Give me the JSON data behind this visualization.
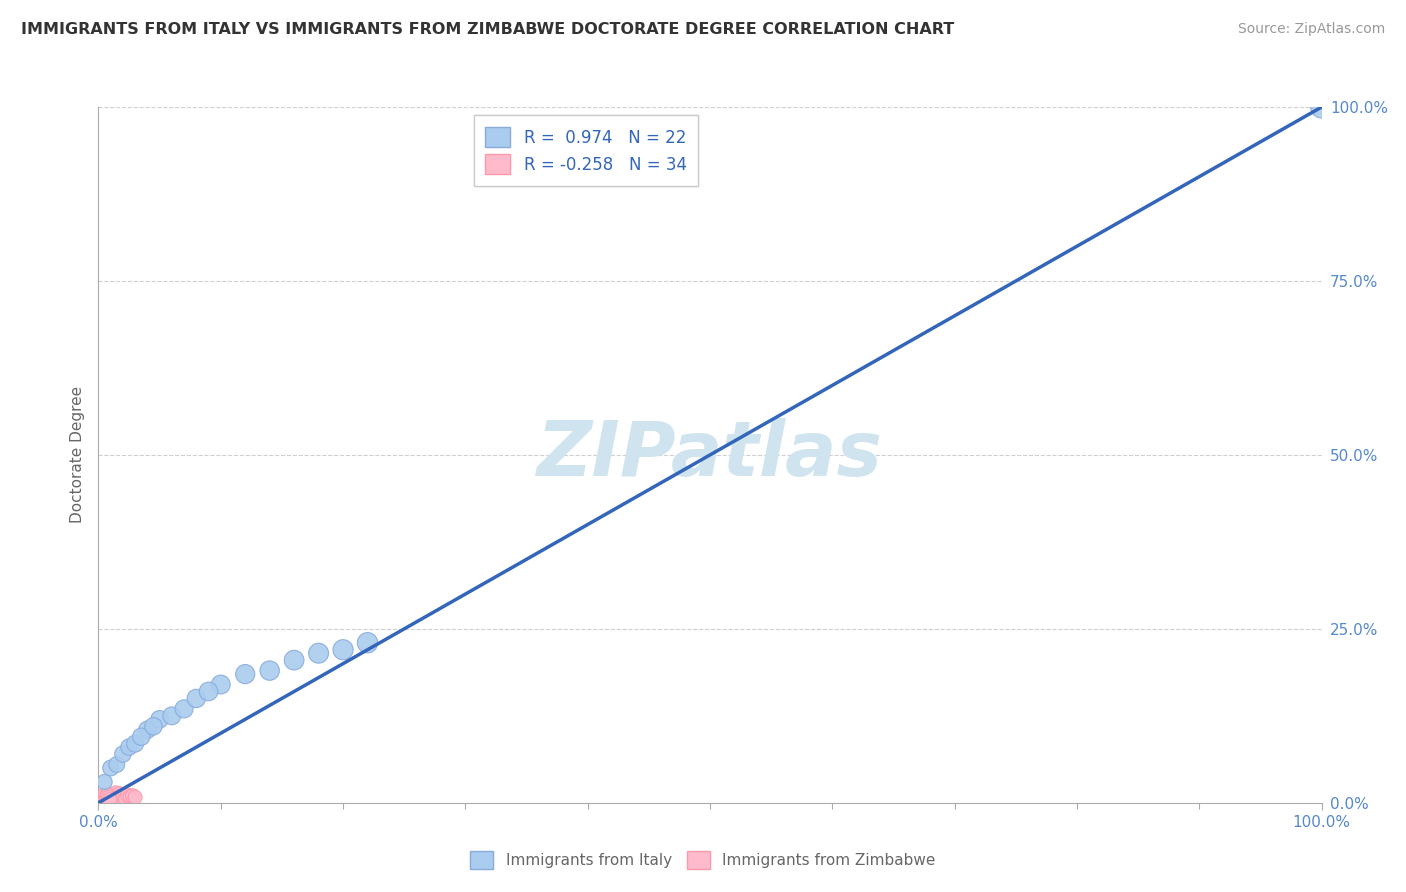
{
  "title": "IMMIGRANTS FROM ITALY VS IMMIGRANTS FROM ZIMBABWE DOCTORATE DEGREE CORRELATION CHART",
  "source": "Source: ZipAtlas.com",
  "ylabel": "Doctorate Degree",
  "ytick_labels": [
    "0.0%",
    "25.0%",
    "50.0%",
    "75.0%",
    "100.0%"
  ],
  "ytick_values": [
    0.0,
    25.0,
    50.0,
    75.0,
    100.0
  ],
  "legend_label1": "Immigrants from Italy",
  "legend_label2": "Immigrants from Zimbabwe",
  "r1": 0.974,
  "n1": 22,
  "r2": -0.258,
  "n2": 34,
  "color_italy": "#aaccee",
  "color_zimbabwe": "#ffbbcc",
  "color_italy_edge": "#88aadd",
  "color_zimbabwe_edge": "#ff99aa",
  "trend_color": "#3366bb",
  "background_color": "#ffffff",
  "grid_color": "#bbbbbb",
  "title_color": "#333333",
  "axis_color": "#aaaaaa",
  "tick_label_color": "#5588cc",
  "watermark_color": "#d0e4f0",
  "ylabel_color": "#666666",
  "source_color": "#999999",
  "legend_text_color": "#3366bb",
  "bottom_legend_color": "#666666",
  "italy_x": [
    0.5,
    1.0,
    1.5,
    2.0,
    2.5,
    3.0,
    4.0,
    5.0,
    6.0,
    7.0,
    8.0,
    10.0,
    12.0,
    14.0,
    16.0,
    18.0,
    20.0,
    22.0,
    100.0,
    3.5,
    4.5,
    9.0
  ],
  "italy_y": [
    3.0,
    5.0,
    5.5,
    7.0,
    8.0,
    8.5,
    10.5,
    12.0,
    12.5,
    13.5,
    15.0,
    17.0,
    18.5,
    19.0,
    20.5,
    21.5,
    22.0,
    23.0,
    100.0,
    9.5,
    11.0,
    16.0
  ],
  "italy_sizes": [
    120,
    130,
    130,
    140,
    140,
    150,
    155,
    160,
    165,
    170,
    175,
    185,
    190,
    195,
    200,
    205,
    210,
    215,
    250,
    155,
    158,
    180
  ],
  "zimbabwe_x": [
    0.1,
    0.2,
    0.3,
    0.4,
    0.5,
    0.6,
    0.7,
    0.8,
    0.9,
    1.0,
    1.1,
    1.2,
    1.3,
    1.4,
    1.5,
    1.6,
    1.7,
    1.8,
    1.9,
    2.0,
    2.2,
    2.4,
    2.6,
    2.8,
    3.0,
    0.15,
    0.25,
    0.35,
    0.45,
    0.55,
    0.65,
    0.75,
    0.85,
    0.95
  ],
  "zimbabwe_y": [
    0.3,
    0.5,
    0.8,
    0.6,
    0.9,
    1.1,
    0.8,
    1.0,
    1.2,
    0.7,
    0.5,
    0.6,
    1.0,
    1.4,
    0.8,
    1.1,
    1.3,
    0.9,
    0.7,
    1.0,
    0.6,
    1.1,
    0.9,
    1.0,
    0.8,
    0.4,
    0.6,
    0.7,
    1.0,
    1.2,
    0.9,
    1.1,
    0.8,
    0.5
  ],
  "zimbabwe_sizes": [
    100,
    100,
    105,
    100,
    105,
    105,
    100,
    105,
    105,
    100,
    100,
    100,
    105,
    110,
    100,
    105,
    105,
    100,
    100,
    105,
    100,
    105,
    100,
    105,
    100,
    95,
    100,
    100,
    105,
    105,
    100,
    105,
    100,
    100
  ],
  "trend_x0": 0.0,
  "trend_y0": 0.0,
  "trend_x1": 100.0,
  "trend_y1": 100.0,
  "xlim": [
    0,
    100
  ],
  "ylim": [
    0,
    100
  ],
  "xtick_minor": [
    10,
    20,
    30,
    40,
    50,
    60,
    70,
    80,
    90
  ]
}
